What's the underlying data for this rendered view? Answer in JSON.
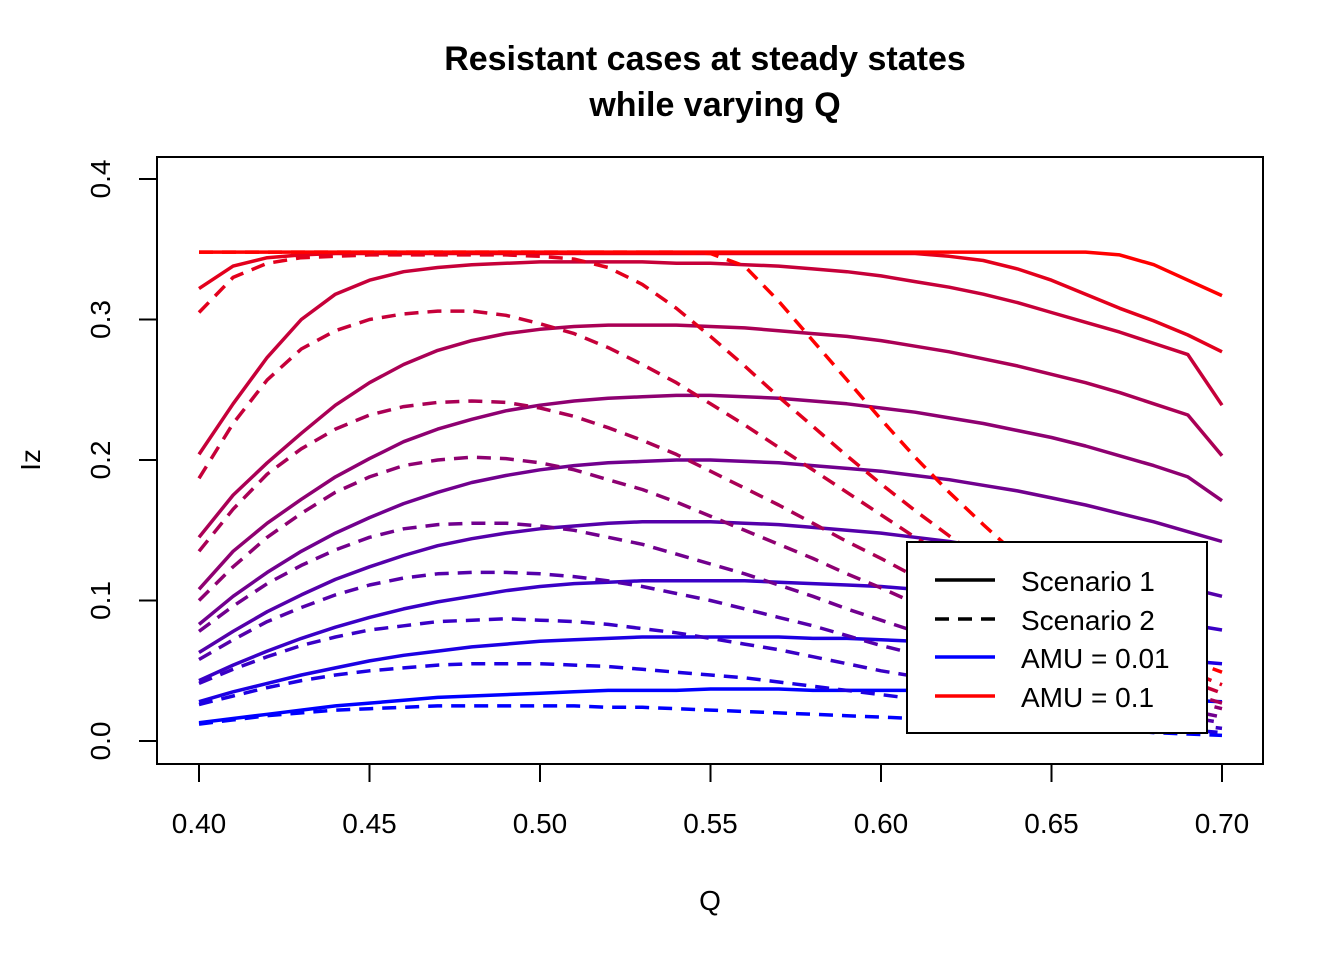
{
  "chart_data": {
    "type": "line",
    "title": [
      "Resistant cases at steady states",
      "while varying Q"
    ],
    "xlabel": "Q",
    "ylabel": "Iz",
    "xlim": [
      0.4,
      0.7
    ],
    "ylim": [
      0.0,
      0.4
    ],
    "x_ticks": [
      "0.40",
      "0.45",
      "0.50",
      "0.55",
      "0.60",
      "0.65",
      "0.70"
    ],
    "y_ticks": [
      "0.0",
      "0.1",
      "0.2",
      "0.3",
      "0.4"
    ],
    "grid": false,
    "x": [
      0.4,
      0.41,
      0.42,
      0.43,
      0.44,
      0.45,
      0.46,
      0.47,
      0.48,
      0.49,
      0.5,
      0.51,
      0.52,
      0.53,
      0.54,
      0.55,
      0.56,
      0.57,
      0.58,
      0.59,
      0.6,
      0.61,
      0.62,
      0.63,
      0.64,
      0.65,
      0.66,
      0.67,
      0.68,
      0.69,
      0.7
    ],
    "colors": {
      "low": "#0000ff",
      "high": "#ff0000"
    },
    "series": [
      {
        "scenario": 1,
        "color": "#0000ff",
        "values": [
          0.013,
          0.016,
          0.019,
          0.022,
          0.025,
          0.027,
          0.029,
          0.031,
          0.032,
          0.033,
          0.034,
          0.035,
          0.036,
          0.036,
          0.036,
          0.037,
          0.037,
          0.037,
          0.036,
          0.036,
          0.036,
          0.036,
          0.035,
          0.035,
          0.034,
          0.033,
          0.032,
          0.031,
          0.03,
          0.029,
          0.028
        ]
      },
      {
        "scenario": 1,
        "color": "#1c00e3",
        "values": [
          0.028,
          0.035,
          0.041,
          0.047,
          0.052,
          0.057,
          0.061,
          0.064,
          0.067,
          0.069,
          0.071,
          0.072,
          0.073,
          0.074,
          0.074,
          0.074,
          0.074,
          0.074,
          0.073,
          0.073,
          0.072,
          0.071,
          0.07,
          0.069,
          0.068,
          0.066,
          0.064,
          0.062,
          0.059,
          0.057,
          0.055
        ]
      },
      {
        "scenario": 1,
        "color": "#3900c6",
        "values": [
          0.043,
          0.054,
          0.064,
          0.073,
          0.081,
          0.088,
          0.094,
          0.099,
          0.103,
          0.107,
          0.11,
          0.112,
          0.113,
          0.114,
          0.114,
          0.114,
          0.114,
          0.113,
          0.112,
          0.111,
          0.11,
          0.108,
          0.106,
          0.104,
          0.101,
          0.098,
          0.095,
          0.091,
          0.087,
          0.083,
          0.079
        ]
      },
      {
        "scenario": 1,
        "color": "#5500aa",
        "values": [
          0.063,
          0.078,
          0.092,
          0.104,
          0.115,
          0.124,
          0.132,
          0.139,
          0.144,
          0.148,
          0.151,
          0.153,
          0.155,
          0.156,
          0.156,
          0.156,
          0.155,
          0.154,
          0.152,
          0.15,
          0.148,
          0.145,
          0.142,
          0.138,
          0.134,
          0.13,
          0.125,
          0.12,
          0.115,
          0.109,
          0.103
        ]
      },
      {
        "scenario": 1,
        "color": "#71008e",
        "values": [
          0.083,
          0.103,
          0.12,
          0.135,
          0.148,
          0.159,
          0.169,
          0.177,
          0.184,
          0.189,
          0.193,
          0.196,
          0.198,
          0.199,
          0.2,
          0.2,
          0.199,
          0.198,
          0.196,
          0.194,
          0.192,
          0.189,
          0.186,
          0.182,
          0.178,
          0.173,
          0.168,
          0.162,
          0.156,
          0.149,
          0.142
        ]
      },
      {
        "scenario": 1,
        "color": "#8e0071",
        "values": [
          0.108,
          0.135,
          0.155,
          0.172,
          0.188,
          0.201,
          0.213,
          0.222,
          0.229,
          0.235,
          0.239,
          0.242,
          0.244,
          0.245,
          0.246,
          0.246,
          0.245,
          0.244,
          0.242,
          0.24,
          0.237,
          0.234,
          0.23,
          0.226,
          0.221,
          0.216,
          0.21,
          0.203,
          0.196,
          0.188,
          0.171
        ]
      },
      {
        "scenario": 1,
        "color": "#aa0055",
        "values": [
          0.145,
          0.175,
          0.198,
          0.219,
          0.239,
          0.255,
          0.268,
          0.278,
          0.285,
          0.29,
          0.293,
          0.295,
          0.296,
          0.296,
          0.296,
          0.295,
          0.294,
          0.292,
          0.29,
          0.288,
          0.285,
          0.281,
          0.277,
          0.272,
          0.267,
          0.261,
          0.255,
          0.248,
          0.24,
          0.232,
          0.203
        ]
      },
      {
        "scenario": 1,
        "color": "#c60039",
        "values": [
          0.204,
          0.24,
          0.273,
          0.3,
          0.318,
          0.328,
          0.334,
          0.337,
          0.339,
          0.34,
          0.341,
          0.341,
          0.341,
          0.341,
          0.34,
          0.34,
          0.339,
          0.338,
          0.336,
          0.334,
          0.331,
          0.327,
          0.323,
          0.318,
          0.312,
          0.305,
          0.298,
          0.291,
          0.283,
          0.275,
          0.239
        ]
      },
      {
        "scenario": 1,
        "color": "#e3001c",
        "values": [
          0.322,
          0.338,
          0.344,
          0.346,
          0.347,
          0.347,
          0.347,
          0.347,
          0.347,
          0.347,
          0.347,
          0.347,
          0.347,
          0.347,
          0.347,
          0.347,
          0.347,
          0.347,
          0.347,
          0.347,
          0.347,
          0.347,
          0.345,
          0.342,
          0.336,
          0.328,
          0.318,
          0.308,
          0.299,
          0.289,
          0.277
        ]
      },
      {
        "scenario": 1,
        "color": "#ff0000",
        "values": [
          0.348,
          0.348,
          0.348,
          0.348,
          0.348,
          0.348,
          0.348,
          0.348,
          0.348,
          0.348,
          0.348,
          0.348,
          0.348,
          0.348,
          0.348,
          0.348,
          0.348,
          0.348,
          0.348,
          0.348,
          0.348,
          0.348,
          0.348,
          0.348,
          0.348,
          0.348,
          0.348,
          0.346,
          0.339,
          0.328,
          0.317
        ]
      },
      {
        "scenario": 2,
        "color": "#0000ff",
        "values": [
          0.012,
          0.015,
          0.018,
          0.02,
          0.022,
          0.023,
          0.024,
          0.025,
          0.025,
          0.025,
          0.025,
          0.025,
          0.024,
          0.024,
          0.023,
          0.022,
          0.021,
          0.02,
          0.019,
          0.018,
          0.017,
          0.016,
          0.014,
          0.013,
          0.012,
          0.01,
          0.009,
          0.008,
          0.006,
          0.005,
          0.004
        ]
      },
      {
        "scenario": 2,
        "color": "#1c00e3",
        "values": [
          0.026,
          0.032,
          0.038,
          0.043,
          0.047,
          0.05,
          0.052,
          0.054,
          0.055,
          0.055,
          0.055,
          0.054,
          0.053,
          0.051,
          0.049,
          0.047,
          0.045,
          0.042,
          0.039,
          0.036,
          0.033,
          0.03,
          0.027,
          0.024,
          0.021,
          0.018,
          0.015,
          0.012,
          0.01,
          0.008,
          0.006
        ]
      },
      {
        "scenario": 2,
        "color": "#3900c6",
        "values": [
          0.041,
          0.051,
          0.06,
          0.068,
          0.074,
          0.079,
          0.082,
          0.085,
          0.086,
          0.087,
          0.086,
          0.085,
          0.083,
          0.08,
          0.077,
          0.073,
          0.069,
          0.065,
          0.06,
          0.055,
          0.05,
          0.046,
          0.041,
          0.036,
          0.032,
          0.027,
          0.023,
          0.019,
          0.015,
          0.012,
          0.009
        ]
      },
      {
        "scenario": 2,
        "color": "#5500aa",
        "values": [
          0.058,
          0.072,
          0.085,
          0.095,
          0.104,
          0.111,
          0.116,
          0.119,
          0.12,
          0.12,
          0.119,
          0.117,
          0.114,
          0.11,
          0.105,
          0.1,
          0.094,
          0.088,
          0.082,
          0.075,
          0.068,
          0.062,
          0.055,
          0.049,
          0.043,
          0.037,
          0.031,
          0.026,
          0.021,
          0.017,
          0.013
        ]
      },
      {
        "scenario": 2,
        "color": "#71008e",
        "values": [
          0.078,
          0.096,
          0.112,
          0.125,
          0.136,
          0.145,
          0.151,
          0.154,
          0.155,
          0.155,
          0.153,
          0.15,
          0.145,
          0.14,
          0.133,
          0.126,
          0.119,
          0.111,
          0.103,
          0.094,
          0.086,
          0.078,
          0.069,
          0.061,
          0.054,
          0.047,
          0.04,
          0.033,
          0.027,
          0.022,
          0.017
        ]
      },
      {
        "scenario": 2,
        "color": "#8e0071",
        "values": [
          0.1,
          0.124,
          0.145,
          0.162,
          0.177,
          0.188,
          0.196,
          0.2,
          0.202,
          0.201,
          0.198,
          0.193,
          0.186,
          0.179,
          0.17,
          0.16,
          0.15,
          0.14,
          0.13,
          0.119,
          0.109,
          0.098,
          0.088,
          0.078,
          0.069,
          0.06,
          0.051,
          0.043,
          0.035,
          0.029,
          0.023
        ]
      },
      {
        "scenario": 2,
        "color": "#aa0055",
        "values": [
          0.135,
          0.165,
          0.19,
          0.208,
          0.222,
          0.232,
          0.238,
          0.241,
          0.242,
          0.241,
          0.237,
          0.231,
          0.223,
          0.214,
          0.204,
          0.192,
          0.18,
          0.168,
          0.155,
          0.142,
          0.13,
          0.117,
          0.105,
          0.093,
          0.081,
          0.07,
          0.06,
          0.05,
          0.042,
          0.034,
          0.027
        ]
      },
      {
        "scenario": 2,
        "color": "#c60039",
        "values": [
          0.187,
          0.226,
          0.257,
          0.279,
          0.292,
          0.3,
          0.304,
          0.306,
          0.306,
          0.303,
          0.297,
          0.29,
          0.28,
          0.268,
          0.255,
          0.24,
          0.225,
          0.209,
          0.193,
          0.177,
          0.161,
          0.145,
          0.13,
          0.115,
          0.101,
          0.088,
          0.075,
          0.063,
          0.052,
          0.043,
          0.034
        ]
      },
      {
        "scenario": 2,
        "color": "#e3001c",
        "values": [
          0.305,
          0.33,
          0.34,
          0.344,
          0.345,
          0.346,
          0.346,
          0.346,
          0.346,
          0.346,
          0.345,
          0.343,
          0.337,
          0.325,
          0.308,
          0.288,
          0.267,
          0.245,
          0.224,
          0.203,
          0.183,
          0.164,
          0.146,
          0.129,
          0.113,
          0.098,
          0.084,
          0.071,
          0.06,
          0.05,
          0.04
        ]
      },
      {
        "scenario": 2,
        "color": "#ff0000",
        "values": [
          0.348,
          0.348,
          0.348,
          0.348,
          0.348,
          0.348,
          0.348,
          0.348,
          0.348,
          0.348,
          0.348,
          0.348,
          0.348,
          0.348,
          0.348,
          0.347,
          0.338,
          0.313,
          0.285,
          0.257,
          0.229,
          0.202,
          0.177,
          0.154,
          0.132,
          0.113,
          0.096,
          0.081,
          0.068,
          0.058,
          0.049
        ]
      }
    ],
    "legend": {
      "position": "bottom-right",
      "entries": [
        {
          "label": "Scenario 1",
          "style": "solid",
          "color": "#000000"
        },
        {
          "label": "Scenario 2",
          "style": "dashed",
          "color": "#000000"
        },
        {
          "label": "AMU = 0.01",
          "style": "solid",
          "color": "#0000ff"
        },
        {
          "label": "AMU = 0.1",
          "style": "solid",
          "color": "#ff0000"
        }
      ]
    }
  }
}
